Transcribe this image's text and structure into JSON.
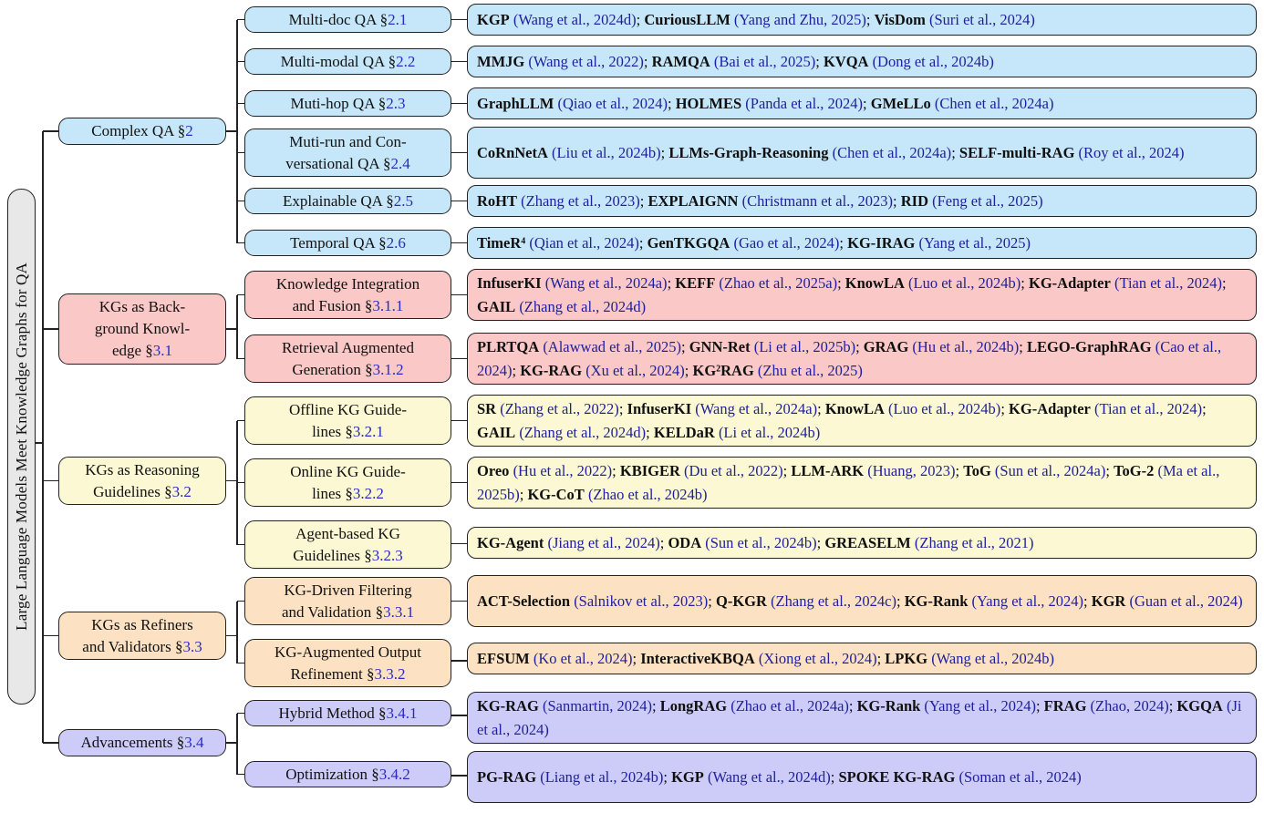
{
  "figure_title": "Large Language Models Meet Knowledge Graphs for QA",
  "section_symbol": "§",
  "colors": {
    "root_fill": "#e8e8e8",
    "complex_qa": "#c6e7fa",
    "kgs_background": "#f9c8c7",
    "kgs_reasoning": "#fbf8d3",
    "kgs_refiners": "#fce2c3",
    "advancements": "#cdccf9",
    "edge": "#222222",
    "citation": "#20209c",
    "section_ref": "#2a2ac0"
  },
  "tree": {
    "root": {
      "label": "Large Language Models Meet Knowledge Graphs for QA"
    },
    "groups": [
      {
        "id": "complex-qa",
        "color_key": "complex_qa",
        "parent": {
          "label": "Complex QA",
          "ref": "2"
        },
        "children": [
          {
            "label": "Multi-doc QA",
            "ref": "2.1",
            "entries": [
              {
                "m": "KGP",
                "c": "Wang et al., 2024d"
              },
              {
                "m": "CuriousLLM",
                "c": "Yang and Zhu, 2025"
              },
              {
                "m": "VisDom",
                "c": "Suri et al., 2024"
              }
            ]
          },
          {
            "label": "Multi-modal QA",
            "ref": "2.2",
            "entries": [
              {
                "m": "MMJG",
                "c": "Wang et al., 2022"
              },
              {
                "m": "RAMQA",
                "c": "Bai et al., 2025"
              },
              {
                "m": "KVQA",
                "c": "Dong et al., 2024b"
              }
            ]
          },
          {
            "label": "Muti-hop QA",
            "ref": "2.3",
            "entries": [
              {
                "m": "GraphLLM",
                "c": "Qiao et al., 2024"
              },
              {
                "m": "HOLMES",
                "c": "Panda et al., 2024"
              },
              {
                "m": "GMeLLo",
                "c": "Chen et al., 2024a"
              }
            ]
          },
          {
            "label": "Muti-run and Con-\nversational QA",
            "ref": "2.4",
            "entries": [
              {
                "m": "CoRnNetA",
                "c": "Liu et al., 2024b"
              },
              {
                "m": "LLMs-Graph-Reasoning",
                "c": "Chen et al., 2024a"
              },
              {
                "m": "SELF-multi-RAG",
                "c": "Roy et al., 2024"
              }
            ]
          },
          {
            "label": "Explainable QA",
            "ref": "2.5",
            "entries": [
              {
                "m": "RoHT",
                "c": "Zhang et al., 2023"
              },
              {
                "m": "EXPLAIGNN",
                "c": "Christmann et al., 2023"
              },
              {
                "m": "RID",
                "c": "Feng et al., 2025"
              }
            ]
          },
          {
            "label": "Temporal QA",
            "ref": "2.6",
            "entries": [
              {
                "m": "TimeR⁴",
                "c": "Qian et al., 2024"
              },
              {
                "m": "GenTKGQA",
                "c": "Gao et al., 2024"
              },
              {
                "m": "KG-IRAG",
                "c": "Yang et al., 2025"
              }
            ]
          }
        ]
      },
      {
        "id": "kgs-background-knowledge",
        "color_key": "kgs_background",
        "parent": {
          "label": "KGs as Back-\nground Knowl-\nedge",
          "ref": "3.1"
        },
        "children": [
          {
            "label": "Knowledge Integration\nand Fusion",
            "ref": "3.1.1",
            "entries": [
              {
                "m": "InfuserKI",
                "c": "Wang et al., 2024a"
              },
              {
                "m": "KEFF",
                "c": "Zhao et al., 2025a"
              },
              {
                "m": "KnowLA",
                "c": "Luo et al., 2024b"
              },
              {
                "m": "KG-Adapter",
                "c": "Tian et al., 2024"
              },
              {
                "m": "GAIL",
                "c": "Zhang et al., 2024d"
              }
            ]
          },
          {
            "label": "Retrieval Augmented\nGeneration",
            "ref": "3.1.2",
            "entries": [
              {
                "m": "PLRTQA",
                "c": "Alawwad et al., 2025"
              },
              {
                "m": "GNN-Ret",
                "c": "Li et al., 2025b"
              },
              {
                "m": "GRAG",
                "c": "Hu et al., 2024b"
              },
              {
                "m": "LEGO-GraphRAG",
                "c": "Cao et al., 2024"
              },
              {
                "m": "KG-RAG",
                "c": "Xu et al., 2024"
              },
              {
                "m": "KG²RAG",
                "c": "Zhu et al., 2025"
              }
            ]
          }
        ]
      },
      {
        "id": "kgs-reasoning-guidelines",
        "color_key": "kgs_reasoning",
        "parent": {
          "label": "KGs as Reasoning\nGuidelines",
          "ref": "3.2"
        },
        "children": [
          {
            "label": "Offline KG Guide-\nlines",
            "ref": "3.2.1",
            "entries": [
              {
                "m": "SR",
                "c": "Zhang et al., 2022"
              },
              {
                "m": "InfuserKI",
                "c": "Wang et al., 2024a"
              },
              {
                "m": "KnowLA",
                "c": "Luo et al., 2024b"
              },
              {
                "m": "KG-Adapter",
                "c": "Tian et al., 2024"
              },
              {
                "m": "GAIL",
                "c": "Zhang et al., 2024d"
              },
              {
                "m": "KELDaR",
                "c": "Li et al., 2024b"
              }
            ]
          },
          {
            "label": "Online KG Guide-\nlines",
            "ref": "3.2.2",
            "entries": [
              {
                "m": "Oreo",
                "c": "Hu et al., 2022"
              },
              {
                "m": "KBIGER",
                "c": "Du et al., 2022"
              },
              {
                "m": "LLM-ARK",
                "c": "Huang, 2023"
              },
              {
                "m": "ToG",
                "c": "Sun et al., 2024a"
              },
              {
                "m": "ToG-2",
                "c": "Ma et al., 2025b"
              },
              {
                "m": "KG-CoT",
                "c": "Zhao et al., 2024b"
              }
            ]
          },
          {
            "label": "Agent-based KG\nGuidelines",
            "ref": "3.2.3",
            "entries": [
              {
                "m": "KG-Agent",
                "c": "Jiang et al., 2024"
              },
              {
                "m": "ODA",
                "c": "Sun et al., 2024b"
              },
              {
                "m": "GREASELM",
                "c": "Zhang et al., 2021"
              }
            ]
          }
        ]
      },
      {
        "id": "kgs-refiners-validators",
        "color_key": "kgs_refiners",
        "parent": {
          "label": "KGs as Refiners\nand Validators",
          "ref": "3.3"
        },
        "children": [
          {
            "label": "KG-Driven Filtering\nand Validation",
            "ref": "3.3.1",
            "entries": [
              {
                "m": "ACT-Selection",
                "c": "Salnikov et al., 2023"
              },
              {
                "m": "Q-KGR",
                "c": "Zhang et al., 2024c"
              },
              {
                "m": "KG-Rank",
                "c": "Yang et al., 2024"
              },
              {
                "m": "KGR",
                "c": "Guan et al., 2024"
              }
            ]
          },
          {
            "label": "KG-Augmented Output\nRefinement",
            "ref": "3.3.2",
            "entries": [
              {
                "m": "EFSUM",
                "c": "Ko et al., 2024"
              },
              {
                "m": "InteractiveKBQA",
                "c": "Xiong et al., 2024"
              },
              {
                "m": "LPKG",
                "c": "Wang et al., 2024b"
              }
            ]
          }
        ]
      },
      {
        "id": "advancements",
        "color_key": "advancements",
        "parent": {
          "label": "Advancements",
          "ref": "3.4"
        },
        "children": [
          {
            "label": "Hybrid Method",
            "ref": "3.4.1",
            "entries": [
              {
                "m": "KG-RAG",
                "c": "Sanmartin, 2024"
              },
              {
                "m": "LongRAG",
                "c": "Zhao et al., 2024a"
              },
              {
                "m": "KG-Rank",
                "c": "Yang et al., 2024"
              },
              {
                "m": "FRAG",
                "c": "Zhao, 2024"
              },
              {
                "m": "KGQA",
                "c": "Ji et al., 2024"
              }
            ]
          },
          {
            "label": "Optimization",
            "ref": "3.4.2",
            "entries": [
              {
                "m": "PG-RAG",
                "c": "Liang et al., 2024b"
              },
              {
                "m": "KGP",
                "c": "Wang et al., 2024d"
              },
              {
                "m": "SPOKE KG-RAG",
                "c": "Soman et al., 2024"
              }
            ]
          }
        ]
      }
    ]
  }
}
